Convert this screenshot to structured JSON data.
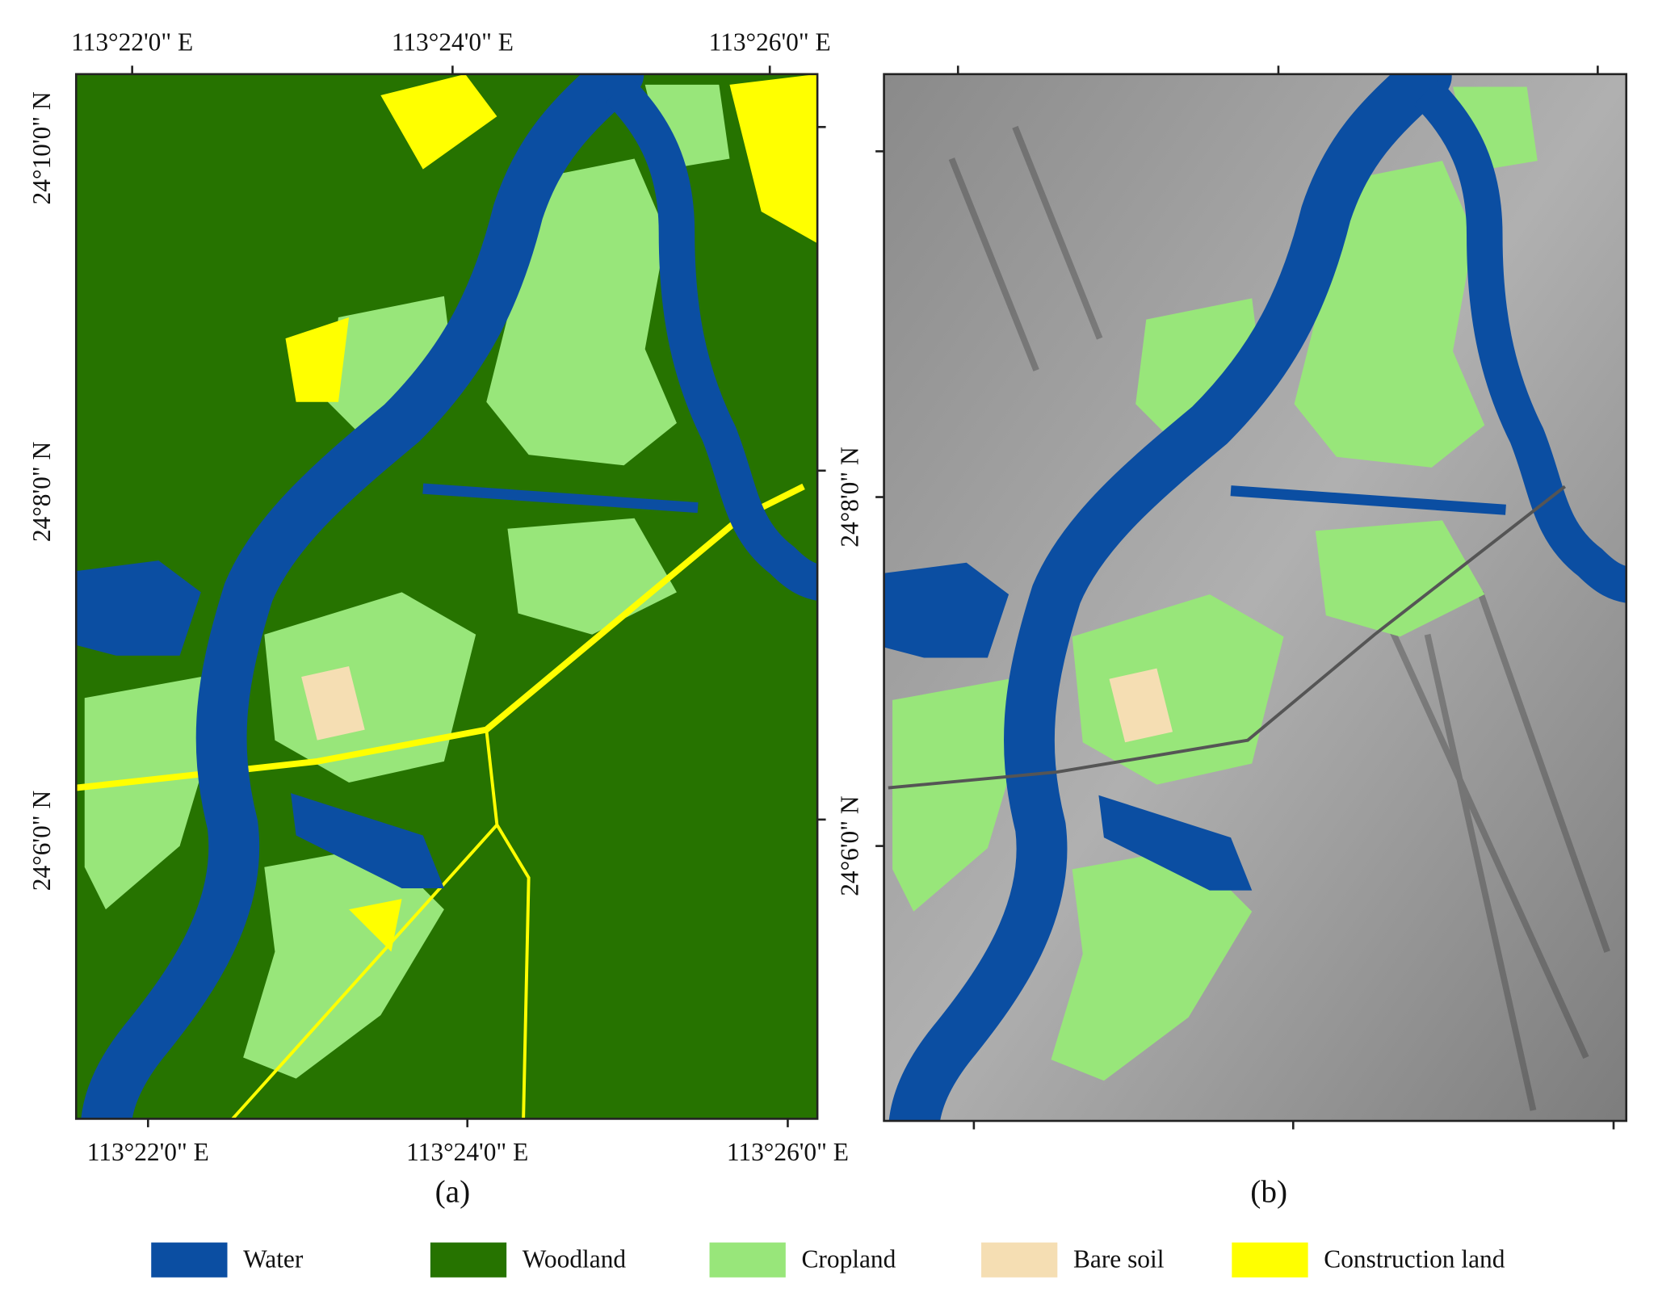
{
  "figure": {
    "panel_a": {
      "label": "(a)",
      "top_ticks": [
        "113°22'0\" E",
        "113°24'0\" E",
        "113°26'0\" E"
      ],
      "bottom_ticks": [
        "113°22'0\" E",
        "113°24'0\" E",
        "113°26'0\" E"
      ],
      "left_ticks": [
        "24°10'0\" N",
        "24°8'0\" N",
        "24°6'0\" N"
      ]
    },
    "panel_b": {
      "label": "(b)",
      "right_ticks": [
        "24°8'0\" N",
        "24°6'0\" N"
      ]
    },
    "legend": [
      {
        "name": "Water",
        "color": "#0b4ea2"
      },
      {
        "name": "Woodland",
        "color": "#267300"
      },
      {
        "name": "Cropland",
        "color": "#98e67a"
      },
      {
        "name": "Bare soil",
        "color": "#f5deb3"
      },
      {
        "name": "Construction land",
        "color": "#ffff00"
      }
    ]
  }
}
